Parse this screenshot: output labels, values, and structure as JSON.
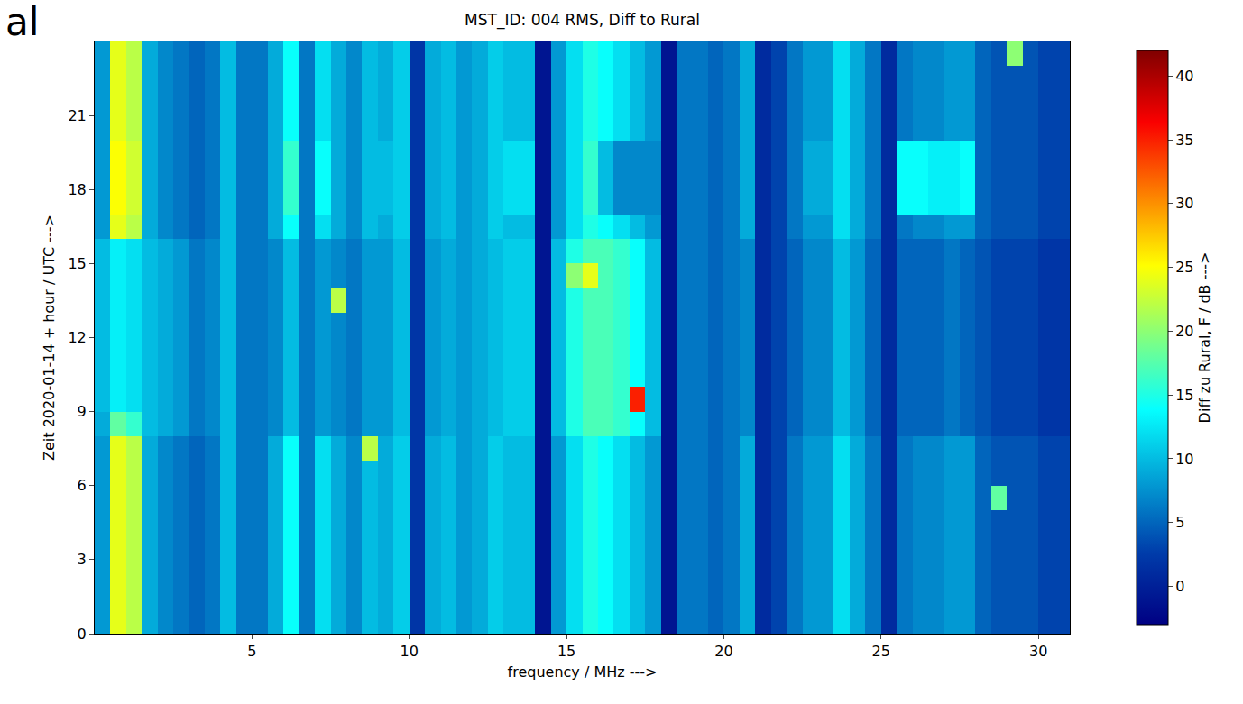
{
  "chart_data": {
    "type": "heatmap",
    "title": "MST_ID: 004 RMS, Diff to Rural",
    "x_label": "frequency / MHz --->",
    "y_label": "Zeit 2020-01-14 + hour / UTC --->",
    "annotations": [
      "al"
    ],
    "color": "Jet",
    "grid": false,
    "xlim": [
      0,
      31
    ],
    "ylim": [
      0,
      24
    ],
    "xticks": [
      5,
      10,
      15,
      20,
      25,
      30
    ],
    "yticks": [
      0,
      3,
      6,
      9,
      12,
      15,
      18,
      21
    ],
    "colorbar": {
      "title": "Diff zu Rural, F / dB --->",
      "range": [
        -3,
        42
      ],
      "ticks": [
        0,
        5,
        10,
        15,
        20,
        25,
        30,
        35,
        40
      ]
    },
    "x": [
      0.25,
      0.75,
      1.25,
      1.75,
      2.25,
      2.75,
      3.25,
      3.75,
      4.25,
      4.75,
      5.25,
      5.75,
      6.25,
      6.75,
      7.25,
      7.75,
      8.25,
      8.75,
      9.25,
      9.75,
      10.25,
      10.75,
      11.25,
      11.75,
      12.25,
      12.75,
      13.25,
      13.75,
      14.25,
      14.75,
      15.25,
      15.75,
      16.25,
      16.75,
      17.25,
      17.75,
      18.25,
      18.75,
      19.25,
      19.75,
      20.25,
      20.75,
      21.25,
      21.75,
      22.25,
      22.75,
      23.25,
      23.75,
      24.25,
      24.75,
      25.25,
      25.75,
      26.25,
      26.75,
      27.25,
      27.75,
      28.25,
      28.75,
      29.25,
      29.75,
      30.25,
      30.75
    ],
    "y": [
      0.5,
      1.5,
      2.5,
      3.5,
      4.5,
      5.5,
      6.5,
      7.5,
      8.5,
      9.5,
      10.5,
      11.5,
      12.5,
      13.5,
      14.5,
      15.5,
      16.5,
      17.5,
      18.5,
      19.5,
      20.5,
      21.5,
      22.5,
      23.5
    ],
    "z": [
      [
        8,
        24,
        22,
        9,
        7,
        6,
        5,
        6,
        10,
        6,
        6,
        9,
        14,
        6,
        12,
        9,
        7,
        10,
        9,
        11,
        2,
        9,
        10,
        8,
        9,
        11,
        10,
        10,
        -1,
        8,
        12,
        15,
        14,
        12,
        10,
        8,
        -1,
        6,
        6,
        5,
        6,
        9,
        1,
        3,
        6,
        8,
        8,
        12,
        9,
        6,
        1,
        6,
        7,
        7,
        8,
        8,
        5,
        4,
        4,
        4,
        3,
        3
      ],
      [
        8,
        24,
        22,
        9,
        7,
        6,
        5,
        6,
        10,
        6,
        6,
        9,
        14,
        6,
        12,
        9,
        7,
        10,
        9,
        11,
        2,
        9,
        10,
        8,
        9,
        11,
        10,
        10,
        -1,
        8,
        12,
        15,
        14,
        12,
        10,
        8,
        -1,
        6,
        6,
        5,
        6,
        9,
        1,
        3,
        6,
        8,
        8,
        12,
        9,
        6,
        1,
        6,
        7,
        7,
        8,
        8,
        5,
        4,
        4,
        4,
        3,
        3
      ],
      [
        8,
        24,
        22,
        9,
        7,
        6,
        5,
        6,
        10,
        6,
        6,
        9,
        14,
        6,
        12,
        9,
        7,
        10,
        9,
        11,
        2,
        9,
        10,
        8,
        9,
        11,
        10,
        10,
        -1,
        8,
        12,
        15,
        14,
        12,
        10,
        8,
        -1,
        6,
        6,
        5,
        6,
        9,
        1,
        3,
        6,
        8,
        8,
        12,
        9,
        6,
        1,
        6,
        7,
        7,
        8,
        8,
        5,
        4,
        4,
        4,
        3,
        3
      ],
      [
        8,
        24,
        22,
        9,
        7,
        6,
        5,
        6,
        10,
        6,
        6,
        9,
        14,
        6,
        12,
        9,
        7,
        10,
        9,
        11,
        2,
        9,
        10,
        8,
        9,
        11,
        10,
        10,
        -1,
        8,
        12,
        15,
        14,
        12,
        10,
        8,
        -1,
        6,
        6,
        5,
        6,
        9,
        1,
        3,
        6,
        8,
        8,
        12,
        9,
        6,
        1,
        6,
        7,
        7,
        8,
        8,
        5,
        4,
        4,
        4,
        3,
        3
      ],
      [
        8,
        24,
        22,
        9,
        7,
        6,
        5,
        6,
        10,
        6,
        6,
        9,
        14,
        6,
        12,
        9,
        7,
        10,
        9,
        11,
        2,
        9,
        10,
        8,
        9,
        11,
        10,
        10,
        -1,
        8,
        12,
        15,
        14,
        12,
        10,
        8,
        -1,
        6,
        6,
        5,
        6,
        9,
        1,
        3,
        6,
        8,
        8,
        12,
        9,
        6,
        1,
        6,
        7,
        7,
        8,
        8,
        5,
        4,
        4,
        4,
        3,
        3
      ],
      [
        8,
        24,
        22,
        9,
        7,
        6,
        5,
        6,
        10,
        6,
        6,
        9,
        14,
        6,
        12,
        9,
        7,
        10,
        9,
        11,
        2,
        9,
        10,
        8,
        9,
        11,
        10,
        10,
        -1,
        8,
        12,
        15,
        14,
        12,
        10,
        8,
        -1,
        6,
        6,
        5,
        6,
        9,
        1,
        3,
        6,
        8,
        8,
        12,
        9,
        6,
        1,
        6,
        7,
        7,
        8,
        8,
        5,
        18,
        4,
        4,
        3,
        3
      ],
      [
        8,
        24,
        22,
        9,
        7,
        6,
        5,
        6,
        10,
        6,
        6,
        9,
        14,
        6,
        12,
        9,
        7,
        10,
        9,
        11,
        2,
        9,
        10,
        8,
        9,
        11,
        10,
        10,
        -1,
        8,
        12,
        15,
        14,
        12,
        10,
        8,
        -1,
        6,
        6,
        5,
        6,
        9,
        1,
        3,
        6,
        8,
        8,
        12,
        9,
        6,
        1,
        6,
        7,
        7,
        8,
        8,
        5,
        4,
        4,
        4,
        3,
        3
      ],
      [
        8,
        24,
        22,
        9,
        7,
        6,
        5,
        6,
        10,
        6,
        6,
        9,
        14,
        6,
        12,
        9,
        7,
        22,
        9,
        11,
        2,
        9,
        10,
        8,
        9,
        11,
        10,
        10,
        -1,
        8,
        12,
        15,
        14,
        12,
        10,
        8,
        -1,
        6,
        6,
        5,
        6,
        9,
        1,
        3,
        6,
        8,
        8,
        12,
        9,
        6,
        1,
        6,
        7,
        7,
        8,
        8,
        5,
        4,
        4,
        4,
        3,
        3
      ],
      [
        9,
        18,
        16,
        10,
        9,
        8,
        6,
        7,
        10,
        6,
        6,
        7,
        10,
        6,
        8,
        7,
        6,
        8,
        8,
        10,
        2,
        8,
        9,
        8,
        9,
        10,
        11,
        11,
        -1,
        10,
        15,
        17,
        17,
        16,
        14,
        10,
        -1,
        6,
        6,
        5,
        6,
        7,
        1,
        3,
        5,
        7,
        7,
        10,
        8,
        5,
        1,
        5,
        5,
        5,
        6,
        5,
        4,
        3,
        3,
        3,
        2,
        2
      ],
      [
        10,
        13,
        12,
        10,
        9,
        8,
        6,
        7,
        10,
        6,
        6,
        7,
        10,
        6,
        8,
        7,
        6,
        8,
        8,
        10,
        2,
        8,
        9,
        8,
        9,
        10,
        11,
        11,
        -1,
        10,
        15,
        17,
        17,
        16,
        35,
        10,
        -1,
        6,
        6,
        5,
        6,
        7,
        1,
        3,
        5,
        7,
        7,
        10,
        8,
        5,
        1,
        5,
        5,
        5,
        6,
        5,
        4,
        3,
        3,
        3,
        2,
        2
      ],
      [
        10,
        13,
        12,
        10,
        9,
        8,
        6,
        7,
        10,
        6,
        6,
        7,
        10,
        6,
        8,
        7,
        6,
        8,
        8,
        10,
        2,
        8,
        9,
        8,
        9,
        10,
        11,
        11,
        -1,
        10,
        15,
        17,
        17,
        16,
        14,
        10,
        -1,
        6,
        6,
        5,
        6,
        7,
        1,
        3,
        5,
        7,
        7,
        10,
        8,
        5,
        1,
        5,
        5,
        5,
        6,
        5,
        4,
        3,
        3,
        3,
        2,
        2
      ],
      [
        10,
        13,
        12,
        10,
        9,
        8,
        6,
        7,
        10,
        6,
        6,
        7,
        10,
        6,
        8,
        7,
        6,
        8,
        8,
        10,
        2,
        8,
        9,
        8,
        9,
        10,
        11,
        11,
        -1,
        10,
        15,
        17,
        17,
        16,
        14,
        10,
        -1,
        6,
        6,
        5,
        6,
        7,
        1,
        3,
        5,
        7,
        7,
        10,
        8,
        5,
        1,
        5,
        5,
        5,
        6,
        5,
        4,
        3,
        3,
        3,
        2,
        2
      ],
      [
        10,
        13,
        12,
        10,
        9,
        8,
        6,
        7,
        10,
        6,
        6,
        7,
        10,
        6,
        8,
        7,
        6,
        8,
        8,
        10,
        2,
        8,
        9,
        8,
        9,
        10,
        11,
        11,
        -1,
        10,
        15,
        17,
        17,
        16,
        14,
        10,
        -1,
        6,
        6,
        5,
        6,
        7,
        1,
        3,
        5,
        7,
        7,
        10,
        8,
        5,
        1,
        5,
        5,
        5,
        6,
        5,
        4,
        3,
        3,
        3,
        2,
        2
      ],
      [
        10,
        13,
        12,
        10,
        9,
        8,
        6,
        7,
        10,
        6,
        6,
        7,
        10,
        6,
        8,
        22,
        6,
        8,
        8,
        10,
        2,
        8,
        9,
        8,
        9,
        10,
        11,
        11,
        -1,
        10,
        15,
        17,
        17,
        16,
        14,
        10,
        -1,
        6,
        6,
        5,
        6,
        7,
        1,
        3,
        5,
        7,
        7,
        10,
        8,
        5,
        1,
        5,
        5,
        5,
        6,
        5,
        4,
        3,
        3,
        3,
        2,
        2
      ],
      [
        10,
        13,
        12,
        10,
        9,
        8,
        6,
        7,
        10,
        6,
        6,
        7,
        10,
        6,
        8,
        7,
        6,
        8,
        8,
        10,
        2,
        8,
        9,
        8,
        9,
        10,
        11,
        11,
        -1,
        10,
        20,
        24,
        17,
        16,
        14,
        10,
        -1,
        6,
        6,
        5,
        6,
        7,
        1,
        3,
        5,
        7,
        7,
        10,
        8,
        5,
        1,
        5,
        5,
        5,
        6,
        5,
        4,
        3,
        3,
        3,
        2,
        2
      ],
      [
        10,
        13,
        12,
        10,
        9,
        8,
        6,
        7,
        10,
        6,
        6,
        7,
        10,
        6,
        8,
        7,
        6,
        8,
        8,
        10,
        2,
        8,
        9,
        8,
        9,
        10,
        11,
        11,
        -1,
        10,
        15,
        17,
        17,
        16,
        14,
        10,
        -1,
        6,
        6,
        5,
        6,
        7,
        1,
        3,
        5,
        7,
        7,
        10,
        8,
        5,
        1,
        5,
        5,
        5,
        6,
        5,
        4,
        3,
        3,
        3,
        2,
        2
      ],
      [
        8,
        24,
        22,
        9,
        7,
        6,
        5,
        6,
        10,
        6,
        6,
        9,
        14,
        6,
        12,
        9,
        7,
        10,
        9,
        11,
        2,
        9,
        10,
        8,
        9,
        11,
        10,
        10,
        -1,
        8,
        12,
        15,
        14,
        12,
        10,
        8,
        -1,
        6,
        6,
        5,
        6,
        9,
        1,
        3,
        6,
        8,
        8,
        12,
        9,
        6,
        1,
        6,
        7,
        7,
        8,
        8,
        5,
        4,
        4,
        4,
        3,
        3
      ],
      [
        8,
        25,
        23,
        9,
        7,
        6,
        5,
        6,
        10,
        6,
        6,
        9,
        16,
        6,
        14,
        9,
        7,
        10,
        10,
        11,
        2,
        9,
        10,
        8,
        9,
        11,
        12,
        12,
        -1,
        8,
        12,
        16,
        10,
        7,
        7,
        7,
        -1,
        6,
        6,
        5,
        6,
        9,
        1,
        3,
        6,
        9,
        9,
        12,
        9,
        6,
        1,
        14,
        14,
        13,
        13,
        14,
        5,
        4,
        4,
        4,
        3,
        3
      ],
      [
        8,
        25,
        23,
        9,
        7,
        6,
        5,
        6,
        10,
        6,
        6,
        9,
        16,
        6,
        14,
        9,
        7,
        10,
        10,
        11,
        2,
        9,
        10,
        8,
        9,
        11,
        12,
        12,
        -1,
        8,
        12,
        16,
        10,
        7,
        7,
        7,
        -1,
        6,
        6,
        5,
        6,
        9,
        1,
        3,
        6,
        9,
        9,
        12,
        9,
        6,
        1,
        14,
        14,
        13,
        13,
        14,
        5,
        4,
        4,
        4,
        3,
        3
      ],
      [
        8,
        25,
        23,
        9,
        7,
        6,
        5,
        6,
        10,
        6,
        6,
        9,
        16,
        6,
        14,
        9,
        7,
        10,
        10,
        11,
        2,
        9,
        10,
        8,
        9,
        11,
        12,
        12,
        -1,
        8,
        12,
        16,
        10,
        7,
        7,
        7,
        -1,
        6,
        6,
        5,
        6,
        9,
        1,
        3,
        6,
        9,
        9,
        12,
        9,
        6,
        1,
        14,
        14,
        13,
        13,
        14,
        5,
        4,
        4,
        4,
        3,
        3
      ],
      [
        8,
        24,
        22,
        9,
        7,
        6,
        5,
        6,
        10,
        6,
        6,
        9,
        14,
        6,
        12,
        9,
        7,
        10,
        9,
        11,
        2,
        9,
        10,
        8,
        9,
        11,
        10,
        10,
        -1,
        8,
        12,
        15,
        14,
        12,
        10,
        8,
        -1,
        6,
        6,
        5,
        6,
        9,
        1,
        3,
        6,
        8,
        8,
        12,
        9,
        6,
        1,
        6,
        7,
        7,
        8,
        8,
        5,
        4,
        4,
        4,
        3,
        3
      ],
      [
        8,
        24,
        22,
        9,
        7,
        6,
        5,
        6,
        10,
        6,
        6,
        9,
        14,
        6,
        12,
        9,
        7,
        10,
        9,
        11,
        2,
        9,
        10,
        8,
        9,
        11,
        10,
        10,
        -1,
        8,
        12,
        15,
        14,
        12,
        10,
        8,
        -1,
        6,
        6,
        5,
        6,
        9,
        1,
        3,
        6,
        8,
        8,
        12,
        9,
        6,
        1,
        6,
        7,
        7,
        8,
        8,
        5,
        4,
        4,
        4,
        3,
        3
      ],
      [
        8,
        24,
        22,
        9,
        7,
        6,
        5,
        6,
        10,
        6,
        6,
        9,
        14,
        6,
        12,
        9,
        7,
        10,
        9,
        11,
        2,
        9,
        10,
        8,
        9,
        11,
        10,
        10,
        -1,
        8,
        12,
        15,
        14,
        12,
        10,
        8,
        -1,
        6,
        6,
        5,
        6,
        9,
        1,
        3,
        6,
        8,
        8,
        12,
        9,
        6,
        1,
        6,
        7,
        7,
        8,
        8,
        5,
        4,
        4,
        4,
        3,
        3
      ],
      [
        8,
        24,
        22,
        9,
        7,
        6,
        5,
        6,
        10,
        6,
        6,
        9,
        14,
        6,
        12,
        9,
        7,
        10,
        9,
        11,
        2,
        9,
        10,
        8,
        9,
        11,
        10,
        10,
        -1,
        8,
        12,
        15,
        14,
        12,
        10,
        8,
        -1,
        6,
        6,
        5,
        6,
        9,
        1,
        3,
        6,
        8,
        8,
        12,
        9,
        6,
        1,
        6,
        7,
        7,
        8,
        8,
        5,
        4,
        20,
        4,
        3,
        3
      ]
    ]
  }
}
